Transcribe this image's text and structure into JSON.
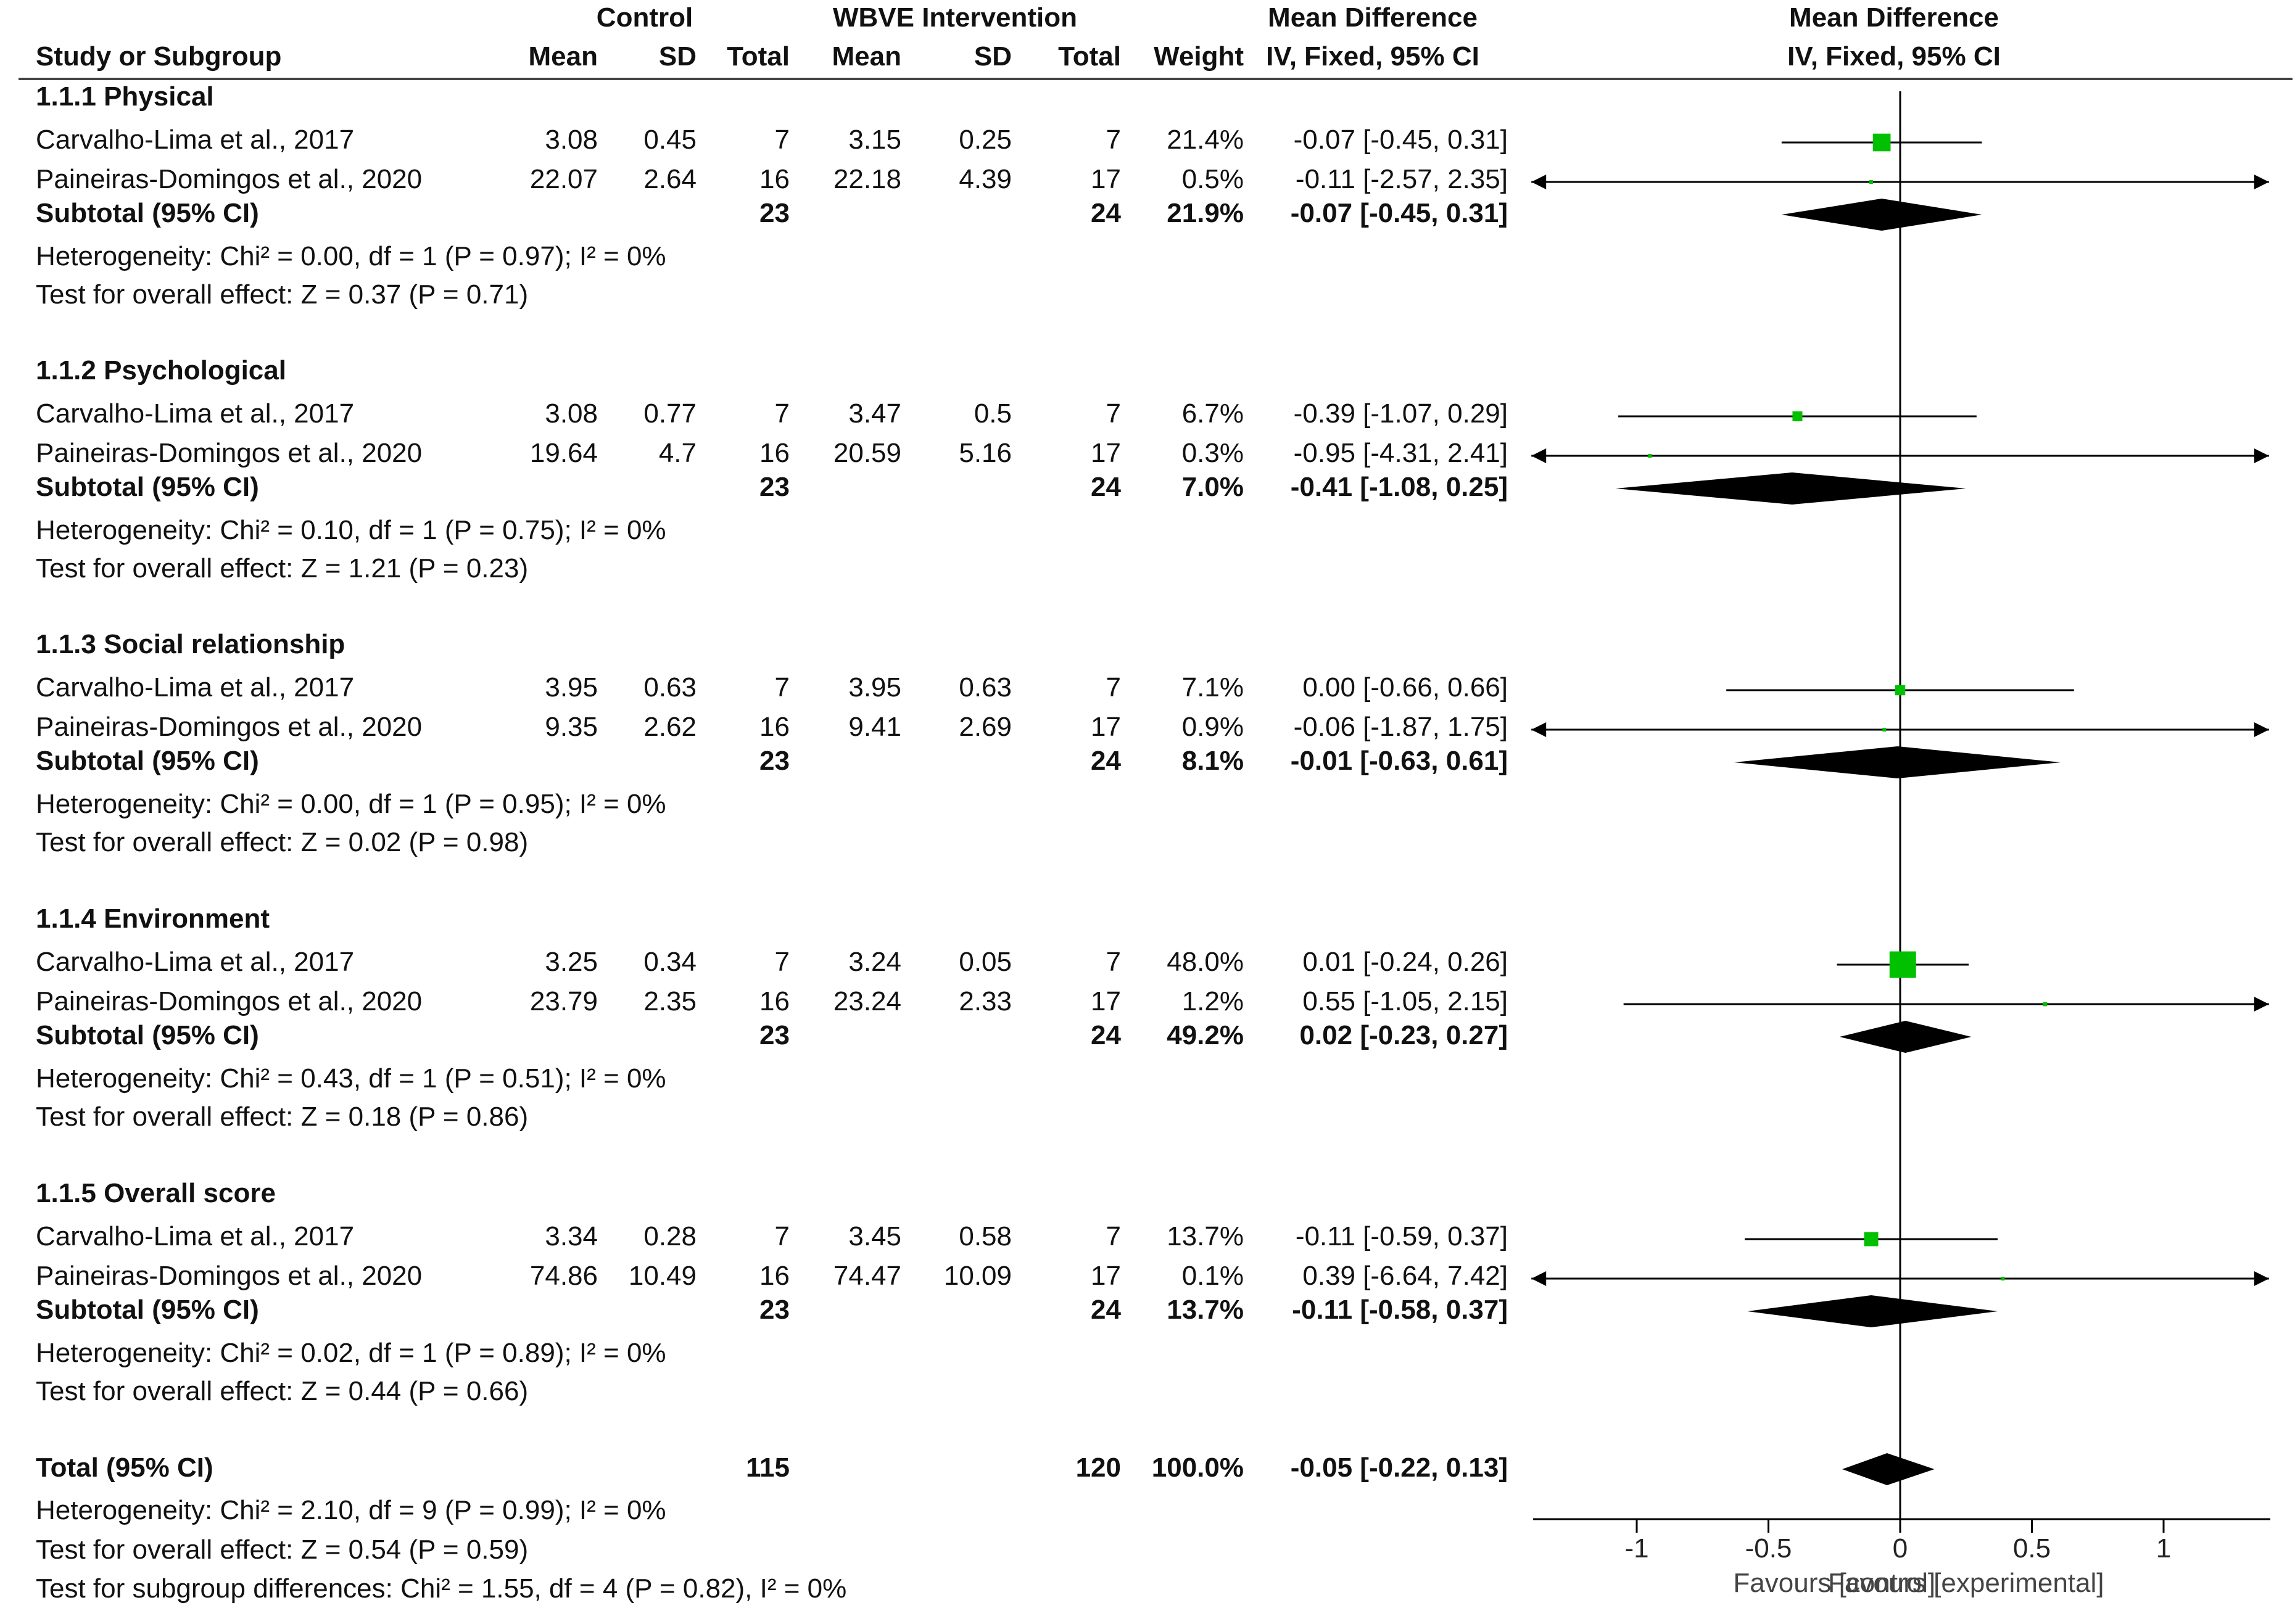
{
  "header": {
    "control_group": "Control",
    "intervention_group": "WBVE Intervention",
    "md_group": "Mean Difference",
    "plot_group": "Mean Difference",
    "col_study": "Study or Subgroup",
    "col_c_mean": "Mean",
    "col_c_sd": "SD",
    "col_c_total": "Total",
    "col_i_mean": "Mean",
    "col_i_sd": "SD",
    "col_i_total": "Total",
    "col_weight": "Weight",
    "col_method": "IV, Fixed, 95% CI",
    "plot_method": "IV, Fixed, 95% CI"
  },
  "subgroups": [
    {
      "title": "1.1.1 Physical",
      "studies": [
        {
          "name": "Carvalho-Lima et al., 2017",
          "c_mean": "3.08",
          "c_sd": "0.45",
          "c_total": "7",
          "i_mean": "3.15",
          "i_sd": "0.25",
          "i_total": "7",
          "weight": "21.4%",
          "ci_text": "-0.07 [-0.45, 0.31]"
        },
        {
          "name": "Paineiras-Domingos et al., 2020",
          "c_mean": "22.07",
          "c_sd": "2.64",
          "c_total": "16",
          "i_mean": "22.18",
          "i_sd": "4.39",
          "i_total": "17",
          "weight": "0.5%",
          "ci_text": "-0.11 [-2.57, 2.35]"
        }
      ],
      "subtotal": {
        "label": "Subtotal (95% CI)",
        "c_total": "23",
        "i_total": "24",
        "weight": "21.9%",
        "ci_text": "-0.07 [-0.45, 0.31]"
      },
      "heterogeneity": "Heterogeneity: Chi² = 0.00, df = 1 (P = 0.97); I² = 0%",
      "overall_effect": "Test for overall effect: Z = 0.37 (P = 0.71)"
    },
    {
      "title": "1.1.2 Psychological",
      "studies": [
        {
          "name": "Carvalho-Lima et al., 2017",
          "c_mean": "3.08",
          "c_sd": "0.77",
          "c_total": "7",
          "i_mean": "3.47",
          "i_sd": "0.5",
          "i_total": "7",
          "weight": "6.7%",
          "ci_text": "-0.39 [-1.07, 0.29]"
        },
        {
          "name": "Paineiras-Domingos et al., 2020",
          "c_mean": "19.64",
          "c_sd": "4.7",
          "c_total": "16",
          "i_mean": "20.59",
          "i_sd": "5.16",
          "i_total": "17",
          "weight": "0.3%",
          "ci_text": "-0.95 [-4.31, 2.41]"
        }
      ],
      "subtotal": {
        "label": "Subtotal (95% CI)",
        "c_total": "23",
        "i_total": "24",
        "weight": "7.0%",
        "ci_text": "-0.41 [-1.08, 0.25]"
      },
      "heterogeneity": "Heterogeneity: Chi² = 0.10, df = 1 (P = 0.75); I² = 0%",
      "overall_effect": "Test for overall effect: Z = 1.21 (P = 0.23)"
    },
    {
      "title": "1.1.3 Social relationship",
      "studies": [
        {
          "name": "Carvalho-Lima et al., 2017",
          "c_mean": "3.95",
          "c_sd": "0.63",
          "c_total": "7",
          "i_mean": "3.95",
          "i_sd": "0.63",
          "i_total": "7",
          "weight": "7.1%",
          "ci_text": "0.00 [-0.66, 0.66]"
        },
        {
          "name": "Paineiras-Domingos et al., 2020",
          "c_mean": "9.35",
          "c_sd": "2.62",
          "c_total": "16",
          "i_mean": "9.41",
          "i_sd": "2.69",
          "i_total": "17",
          "weight": "0.9%",
          "ci_text": "-0.06 [-1.87, 1.75]"
        }
      ],
      "subtotal": {
        "label": "Subtotal (95% CI)",
        "c_total": "23",
        "i_total": "24",
        "weight": "8.1%",
        "ci_text": "-0.01 [-0.63, 0.61]"
      },
      "heterogeneity": "Heterogeneity: Chi² = 0.00, df = 1 (P = 0.95); I² = 0%",
      "overall_effect": "Test for overall effect: Z = 0.02 (P = 0.98)"
    },
    {
      "title": "1.1.4 Environment",
      "studies": [
        {
          "name": "Carvalho-Lima et al., 2017",
          "c_mean": "3.25",
          "c_sd": "0.34",
          "c_total": "7",
          "i_mean": "3.24",
          "i_sd": "0.05",
          "i_total": "7",
          "weight": "48.0%",
          "ci_text": "0.01 [-0.24, 0.26]"
        },
        {
          "name": "Paineiras-Domingos et al., 2020",
          "c_mean": "23.79",
          "c_sd": "2.35",
          "c_total": "16",
          "i_mean": "23.24",
          "i_sd": "2.33",
          "i_total": "17",
          "weight": "1.2%",
          "ci_text": "0.55 [-1.05, 2.15]"
        }
      ],
      "subtotal": {
        "label": "Subtotal (95% CI)",
        "c_total": "23",
        "i_total": "24",
        "weight": "49.2%",
        "ci_text": "0.02 [-0.23, 0.27]"
      },
      "heterogeneity": "Heterogeneity: Chi² = 0.43, df = 1 (P = 0.51); I² = 0%",
      "overall_effect": "Test for overall effect: Z = 0.18 (P = 0.86)"
    },
    {
      "title": "1.1.5 Overall score",
      "studies": [
        {
          "name": "Carvalho-Lima et al., 2017",
          "c_mean": "3.34",
          "c_sd": "0.28",
          "c_total": "7",
          "i_mean": "3.45",
          "i_sd": "0.58",
          "i_total": "7",
          "weight": "13.7%",
          "ci_text": "-0.11 [-0.59, 0.37]"
        },
        {
          "name": "Paineiras-Domingos et al., 2020",
          "c_mean": "74.86",
          "c_sd": "10.49",
          "c_total": "16",
          "i_mean": "74.47",
          "i_sd": "10.09",
          "i_total": "17",
          "weight": "0.1%",
          "ci_text": "0.39 [-6.64, 7.42]"
        }
      ],
      "subtotal": {
        "label": "Subtotal (95% CI)",
        "c_total": "23",
        "i_total": "24",
        "weight": "13.7%",
        "ci_text": "-0.11 [-0.58, 0.37]"
      },
      "heterogeneity": "Heterogeneity: Chi² = 0.02, df = 1 (P = 0.89); I² = 0%",
      "overall_effect": "Test for overall effect: Z = 0.44 (P = 0.66)"
    }
  ],
  "total": {
    "label": "Total (95% CI)",
    "c_total": "115",
    "i_total": "120",
    "weight": "100.0%",
    "ci_text": "-0.05 [-0.22, 0.13]",
    "heterogeneity": "Heterogeneity: Chi² = 2.10, df = 9 (P = 0.99); I² = 0%",
    "overall_effect": "Test for overall effect: Z = 0.54 (P = 0.59)",
    "subgroup_diff": "Test for subgroup differences: Chi² = 1.55, df = 4 (P = 0.82), I² = 0%"
  },
  "axis": {
    "favours_left": "Favours [control]",
    "favours_right": "Favours [experimental]"
  },
  "colors": {
    "point": "#00c000",
    "diamond": "#000000",
    "line": "#000000"
  },
  "chart_data": {
    "type": "forest",
    "title": "Mean Difference IV, Fixed, 95% CI",
    "xlim": [
      -1.4,
      1.4
    ],
    "ticks": [
      -1,
      -0.5,
      0,
      0.5,
      1
    ],
    "tick_labels": [
      "-1",
      "-0.5",
      "0",
      "0.5",
      "1"
    ],
    "xlabel_left": "Favours [control]",
    "xlabel_right": "Favours [experimental]",
    "subgroups": [
      {
        "name": "1.1.1 Physical",
        "studies": [
          {
            "md": -0.07,
            "lo": -0.45,
            "hi": 0.31,
            "weight": 21.4
          },
          {
            "md": -0.11,
            "lo": -2.57,
            "hi": 2.35,
            "weight": 0.5
          }
        ],
        "subtotal": {
          "md": -0.07,
          "lo": -0.45,
          "hi": 0.31
        }
      },
      {
        "name": "1.1.2 Psychological",
        "studies": [
          {
            "md": -0.39,
            "lo": -1.07,
            "hi": 0.29,
            "weight": 6.7
          },
          {
            "md": -0.95,
            "lo": -4.31,
            "hi": 2.41,
            "weight": 0.3
          }
        ],
        "subtotal": {
          "md": -0.41,
          "lo": -1.08,
          "hi": 0.25
        }
      },
      {
        "name": "1.1.3 Social relationship",
        "studies": [
          {
            "md": 0.0,
            "lo": -0.66,
            "hi": 0.66,
            "weight": 7.1
          },
          {
            "md": -0.06,
            "lo": -1.87,
            "hi": 1.75,
            "weight": 0.9
          }
        ],
        "subtotal": {
          "md": -0.01,
          "lo": -0.63,
          "hi": 0.61
        }
      },
      {
        "name": "1.1.4 Environment",
        "studies": [
          {
            "md": 0.01,
            "lo": -0.24,
            "hi": 0.26,
            "weight": 48.0
          },
          {
            "md": 0.55,
            "lo": -1.05,
            "hi": 2.15,
            "weight": 1.2
          }
        ],
        "subtotal": {
          "md": 0.02,
          "lo": -0.23,
          "hi": 0.27
        }
      },
      {
        "name": "1.1.5 Overall score",
        "studies": [
          {
            "md": -0.11,
            "lo": -0.59,
            "hi": 0.37,
            "weight": 13.7
          },
          {
            "md": 0.39,
            "lo": -6.64,
            "hi": 7.42,
            "weight": 0.1
          }
        ],
        "subtotal": {
          "md": -0.11,
          "lo": -0.58,
          "hi": 0.37
        }
      }
    ],
    "total": {
      "md": -0.05,
      "lo": -0.22,
      "hi": 0.13
    }
  }
}
